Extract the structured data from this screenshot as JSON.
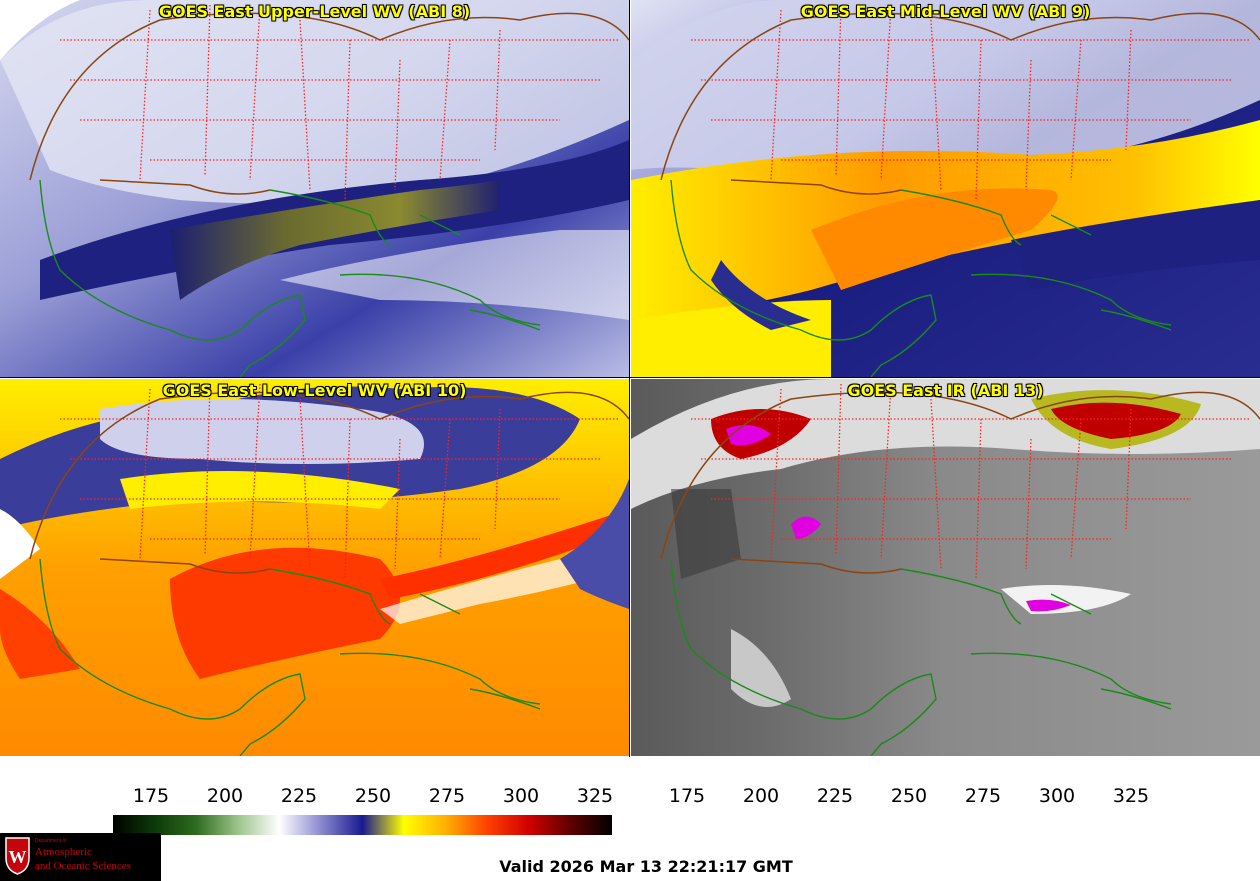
{
  "panels": [
    {
      "title": "GOES East Upper-Level WV (ABI 8)",
      "scheme": "wv_upper"
    },
    {
      "title": "GOES East Mid-Level WV (ABI 9)",
      "scheme": "wv_mid"
    },
    {
      "title": "GOES East Low-Level WV (ABI 10)",
      "scheme": "wv_low"
    },
    {
      "title": "GOES East IR (ABI 13)",
      "scheme": "ir"
    }
  ],
  "colorbar_wv": {
    "ticks": [
      "175",
      "200",
      "225",
      "250",
      "275",
      "300",
      "325"
    ],
    "colors": [
      "#000000",
      "#0c3a08",
      "#2d6b1e",
      "#9cc48a",
      "#ffffff",
      "#8a8ad0",
      "#1a1a90",
      "#ffff00",
      "#ffb000",
      "#ff4000",
      "#d00000",
      "#600000",
      "#000000"
    ]
  },
  "colorbar_ir": {
    "ticks": [
      "175",
      "200",
      "225",
      "250",
      "275",
      "300",
      "325"
    ],
    "colors": [
      "#1a0040",
      "#0000ff",
      "#ffffff",
      "#00c000",
      "#00a0a0",
      "#ff00ff",
      "#ff0000",
      "#ffff00",
      "#f0f0f0",
      "#000000"
    ]
  },
  "valid_time": "Valid 2026 Mar 13 22:21:17 GMT",
  "logo": {
    "dept": "Department of",
    "line1": "Atmospheric",
    "line2": "and Oceanic Sciences",
    "crest_letter": "W"
  },
  "colors": {
    "state_lines": "#ff2020",
    "coast_lines": "#1a8a1a",
    "border_lines": "#8b4513",
    "title_text": "#ffff00"
  }
}
